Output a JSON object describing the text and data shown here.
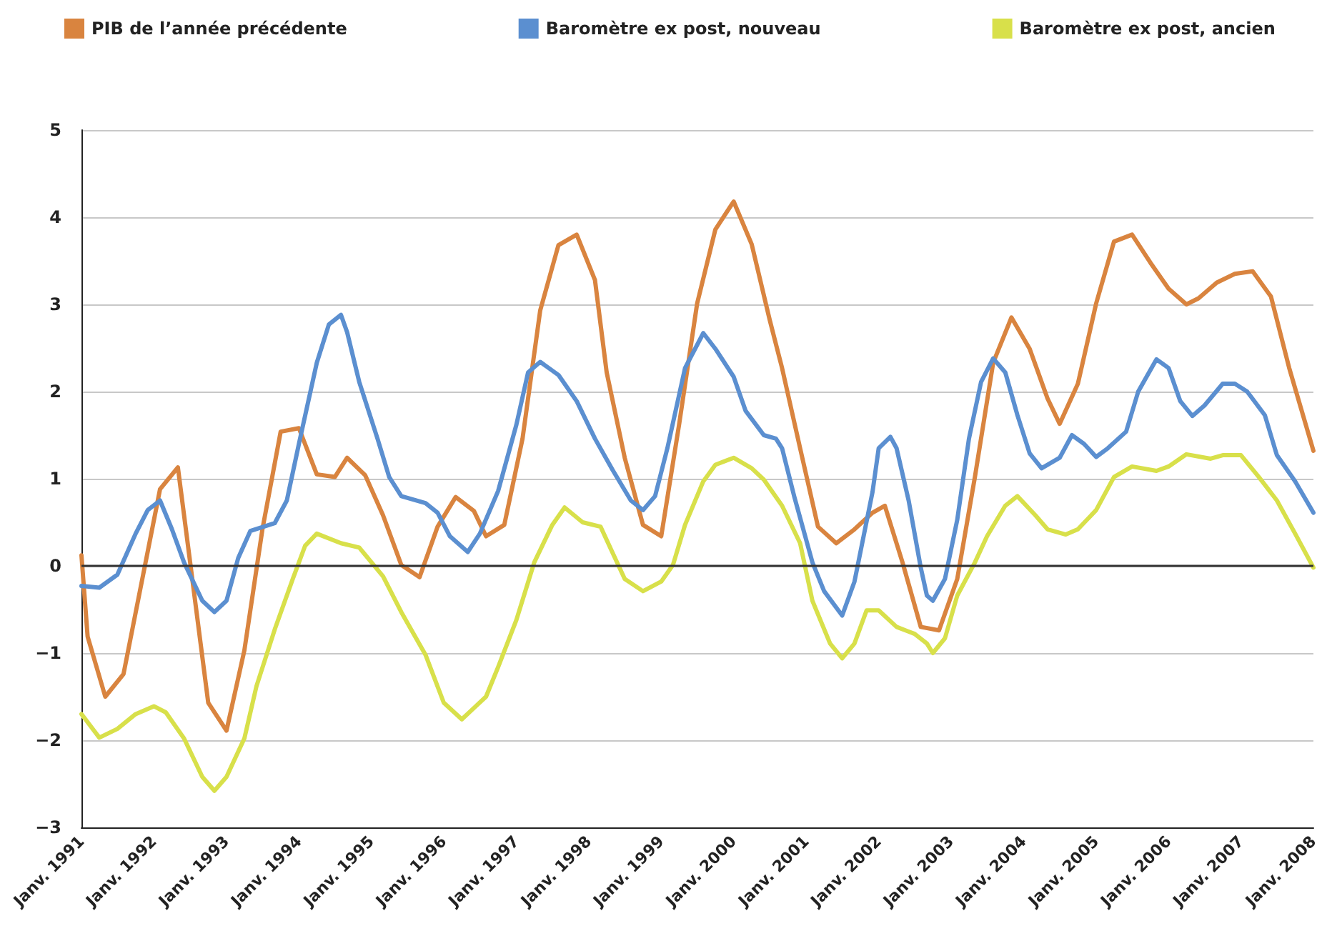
{
  "chart_data": {
    "type": "line",
    "legend": "top",
    "grid": "y",
    "marker": "none",
    "line_style": "solid",
    "xlim": [
      "1991-01",
      "2008-01"
    ],
    "xticks": [
      {
        "value": "1991-01",
        "label": "Janv. 1991"
      },
      {
        "value": "1992-01",
        "label": "Janv. 1992"
      },
      {
        "value": "1993-01",
        "label": "Janv. 1993"
      },
      {
        "value": "1994-01",
        "label": "Janv. 1994"
      },
      {
        "value": "1995-01",
        "label": "Janv. 1995"
      },
      {
        "value": "1996-01",
        "label": "Janv. 1996"
      },
      {
        "value": "1997-01",
        "label": "Janv. 1997"
      },
      {
        "value": "1998-01",
        "label": "Janv. 1998"
      },
      {
        "value": "1999-01",
        "label": "Janv. 1999"
      },
      {
        "value": "2000-01",
        "label": "Janv. 2000"
      },
      {
        "value": "2001-01",
        "label": "Janv. 2001"
      },
      {
        "value": "2002-01",
        "label": "Janv. 2002"
      },
      {
        "value": "2003-01",
        "label": "Janv. 2003"
      },
      {
        "value": "2004-01",
        "label": "Janv. 2004"
      },
      {
        "value": "2005-01",
        "label": "Janv. 2005"
      },
      {
        "value": "2006-01",
        "label": "Janv. 2006"
      },
      {
        "value": "2007-01",
        "label": "Janv. 2007"
      },
      {
        "value": "2008-01",
        "label": "Janv. 2008"
      }
    ],
    "ylim": [
      -3,
      5
    ],
    "yticks": [
      {
        "value": -3,
        "label": "−3"
      },
      {
        "value": -2,
        "label": "−2"
      },
      {
        "value": -1,
        "label": "−1"
      },
      0,
      1,
      2,
      3,
      4,
      5
    ],
    "ref_lines": [
      {
        "axis": "y",
        "value": 0,
        "color": "#333333"
      }
    ],
    "series": [
      {
        "name": "PIB de l’année précédente",
        "color": "#d9843f",
        "x": [
          "1991-01",
          "1991-02",
          "1991-05",
          "1991-08",
          "1992-02",
          "1992-05",
          "1992-10",
          "1993-01",
          "1993-04",
          "1993-07",
          "1993-10",
          "1994-01",
          "1994-04",
          "1994-07",
          "1994-09",
          "1994-12",
          "1995-03",
          "1995-06",
          "1995-09",
          "1995-12",
          "1996-03",
          "1996-06",
          "1996-08",
          "1996-11",
          "1997-02",
          "1997-05",
          "1997-08",
          "1997-11",
          "1998-02",
          "1998-04",
          "1998-07",
          "1998-10",
          "1999-01",
          "1999-04",
          "1999-07",
          "1999-10",
          "2000-01",
          "2000-04",
          "2000-07",
          "2000-09",
          "2000-12",
          "2001-03",
          "2001-06",
          "2001-09",
          "2001-12",
          "2002-02",
          "2002-05",
          "2002-08",
          "2002-11",
          "2003-02",
          "2003-05",
          "2003-08",
          "2003-11",
          "2004-02",
          "2004-05",
          "2004-07",
          "2004-10",
          "2005-01",
          "2005-04",
          "2005-07",
          "2005-10",
          "2006-01",
          "2006-04",
          "2006-06",
          "2006-09",
          "2006-12",
          "2007-03",
          "2007-06",
          "2007-09",
          "2008-01"
        ],
        "values": [
          0.12,
          -0.81,
          -1.5,
          -1.24,
          0.88,
          1.13,
          -1.57,
          -1.89,
          -0.97,
          0.42,
          1.54,
          1.58,
          1.05,
          1.02,
          1.24,
          1.04,
          0.58,
          0.01,
          -0.13,
          0.45,
          0.79,
          0.63,
          0.34,
          0.47,
          1.46,
          2.93,
          3.68,
          3.8,
          3.28,
          2.22,
          1.24,
          0.47,
          0.34,
          1.62,
          3.01,
          3.86,
          4.18,
          3.69,
          2.82,
          2.27,
          1.35,
          0.45,
          0.26,
          0.42,
          0.61,
          0.69,
          0.04,
          -0.7,
          -0.74,
          -0.15,
          1.02,
          2.33,
          2.85,
          2.49,
          1.92,
          1.63,
          2.09,
          3.01,
          3.72,
          3.8,
          3.48,
          3.18,
          3.0,
          3.07,
          3.25,
          3.35,
          3.38,
          3.09,
          2.27,
          1.32
        ]
      },
      {
        "name": "Baromètre ex post, nouveau",
        "color": "#5b8fd0",
        "x": [
          "1991-01",
          "1991-04",
          "1991-07",
          "1991-10",
          "1991-12",
          "1992-02",
          "1992-04",
          "1992-06",
          "1992-09",
          "1992-11",
          "1993-01",
          "1993-03",
          "1993-05",
          "1993-09",
          "1993-11",
          "1994-01",
          "1994-04",
          "1994-06",
          "1994-08",
          "1994-09",
          "1994-11",
          "1995-02",
          "1995-04",
          "1995-06",
          "1995-10",
          "1995-12",
          "1996-02",
          "1996-05",
          "1996-07",
          "1996-10",
          "1997-01",
          "1997-03",
          "1997-05",
          "1997-08",
          "1997-11",
          "1998-02",
          "1998-05",
          "1998-08",
          "1998-10",
          "1998-12",
          "1999-02",
          "1999-05",
          "1999-08",
          "1999-10",
          "2000-01",
          "2000-03",
          "2000-06",
          "2000-08",
          "2000-09",
          "2000-11",
          "2001-02",
          "2001-04",
          "2001-07",
          "2001-09",
          "2001-12",
          "2002-01",
          "2002-03",
          "2002-04",
          "2002-06",
          "2002-08",
          "2002-09",
          "2002-10",
          "2002-12",
          "2003-02",
          "2003-04",
          "2003-06",
          "2003-08",
          "2003-10",
          "2003-12",
          "2004-02",
          "2004-04",
          "2004-07",
          "2004-09",
          "2004-11",
          "2005-01",
          "2005-03",
          "2005-06",
          "2005-08",
          "2005-11",
          "2006-01",
          "2006-03",
          "2006-05",
          "2006-07",
          "2006-10",
          "2006-12",
          "2007-02",
          "2007-05",
          "2007-07",
          "2007-10",
          "2008-01"
        ],
        "values": [
          -0.23,
          -0.25,
          -0.1,
          0.37,
          0.64,
          0.75,
          0.42,
          0.04,
          -0.4,
          -0.53,
          -0.4,
          0.09,
          0.4,
          0.49,
          0.75,
          1.4,
          2.33,
          2.77,
          2.88,
          2.68,
          2.11,
          1.46,
          1.02,
          0.8,
          0.72,
          0.61,
          0.34,
          0.16,
          0.37,
          0.86,
          1.62,
          2.22,
          2.34,
          2.19,
          1.89,
          1.46,
          1.1,
          0.75,
          0.64,
          0.8,
          1.35,
          2.27,
          2.67,
          2.49,
          2.17,
          1.78,
          1.5,
          1.46,
          1.35,
          0.8,
          0.04,
          -0.29,
          -0.57,
          -0.18,
          0.85,
          1.35,
          1.48,
          1.35,
          0.75,
          -0.02,
          -0.34,
          -0.4,
          -0.15,
          0.53,
          1.46,
          2.11,
          2.38,
          2.22,
          1.73,
          1.29,
          1.12,
          1.24,
          1.5,
          1.4,
          1.25,
          1.35,
          1.54,
          2.0,
          2.37,
          2.27,
          1.89,
          1.72,
          1.84,
          2.09,
          2.09,
          2.0,
          1.73,
          1.27,
          0.97,
          0.61
        ]
      },
      {
        "name": "Baromètre ex post, ancien",
        "color": "#d8e04a",
        "x": [
          "1991-01",
          "1991-04",
          "1991-07",
          "1991-10",
          "1992-01",
          "1992-03",
          "1992-06",
          "1992-09",
          "1992-11",
          "1993-01",
          "1993-04",
          "1993-06",
          "1993-09",
          "1993-12",
          "1994-02",
          "1994-04",
          "1994-08",
          "1994-11",
          "1995-03",
          "1995-06",
          "1995-10",
          "1996-01",
          "1996-04",
          "1996-06",
          "1996-08",
          "1996-10",
          "1997-01",
          "1997-04",
          "1997-07",
          "1997-09",
          "1997-12",
          "1998-03",
          "1998-05",
          "1998-07",
          "1998-10",
          "1999-01",
          "1999-03",
          "1999-05",
          "1999-08",
          "1999-10",
          "2000-01",
          "2000-04",
          "2000-06",
          "2000-09",
          "2000-12",
          "2001-02",
          "2001-05",
          "2001-07",
          "2001-09",
          "2001-11",
          "2002-01",
          "2002-04",
          "2002-07",
          "2002-09",
          "2002-10",
          "2002-12",
          "2003-02",
          "2003-05",
          "2003-07",
          "2003-10",
          "2003-12",
          "2004-03",
          "2004-05",
          "2004-08",
          "2004-10",
          "2005-01",
          "2005-04",
          "2005-07",
          "2005-11",
          "2006-01",
          "2006-04",
          "2006-08",
          "2006-10",
          "2007-01",
          "2007-04",
          "2007-07",
          "2007-10",
          "2008-01"
        ],
        "values": [
          -1.7,
          -1.97,
          -1.87,
          -1.7,
          -1.61,
          -1.68,
          -1.98,
          -2.42,
          -2.58,
          -2.42,
          -1.98,
          -1.38,
          -0.73,
          -0.15,
          0.23,
          0.37,
          0.26,
          0.21,
          -0.12,
          -0.53,
          -1.02,
          -1.57,
          -1.76,
          -1.63,
          -1.5,
          -1.16,
          -0.62,
          0.04,
          0.47,
          0.67,
          0.5,
          0.45,
          0.15,
          -0.15,
          -0.29,
          -0.18,
          0.01,
          0.47,
          0.97,
          1.16,
          1.24,
          1.12,
          0.99,
          0.69,
          0.26,
          -0.4,
          -0.89,
          -1.06,
          -0.89,
          -0.51,
          -0.51,
          -0.7,
          -0.78,
          -0.89,
          -1.0,
          -0.83,
          -0.34,
          0.04,
          0.34,
          0.69,
          0.8,
          0.58,
          0.42,
          0.36,
          0.42,
          0.64,
          1.02,
          1.14,
          1.09,
          1.14,
          1.28,
          1.23,
          1.27,
          1.27,
          1.02,
          0.75,
          0.37,
          -0.02
        ]
      }
    ]
  }
}
